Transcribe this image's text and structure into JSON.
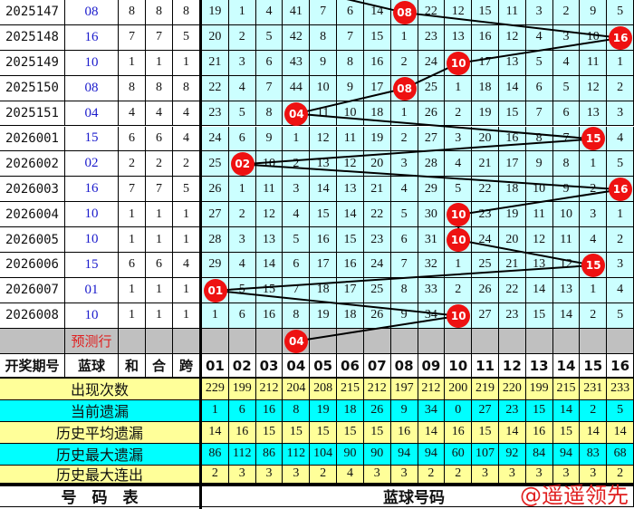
{
  "chart_data": {
    "type": "table",
    "title": "",
    "columns": [
      "开奖期号",
      "蓝球",
      "和",
      "合",
      "跨",
      "01",
      "02",
      "03",
      "04",
      "05",
      "06",
      "07",
      "08",
      "09",
      "10",
      "11",
      "12",
      "13",
      "14",
      "15",
      "16"
    ],
    "rows": [
      {
        "period": "2025147",
        "blue": "08",
        "he": "8",
        "hex": "8",
        "kua": "8",
        "miss": [
          19,
          1,
          4,
          41,
          7,
          6,
          14,
          "08",
          22,
          12,
          15,
          11,
          3,
          2,
          9,
          5
        ]
      },
      {
        "period": "2025148",
        "blue": "16",
        "he": "7",
        "hex": "7",
        "kua": "5",
        "miss": [
          20,
          2,
          5,
          42,
          8,
          7,
          15,
          1,
          23,
          13,
          16,
          12,
          4,
          3,
          10,
          "16"
        ]
      },
      {
        "period": "2025149",
        "blue": "10",
        "he": "1",
        "hex": "1",
        "kua": "1",
        "miss": [
          21,
          3,
          6,
          43,
          9,
          8,
          16,
          2,
          24,
          "10",
          17,
          13,
          5,
          4,
          11,
          1
        ]
      },
      {
        "period": "2025150",
        "blue": "08",
        "he": "8",
        "hex": "8",
        "kua": "8",
        "miss": [
          22,
          4,
          7,
          44,
          10,
          9,
          17,
          "08",
          25,
          1,
          18,
          14,
          6,
          5,
          12,
          2
        ]
      },
      {
        "period": "2025151",
        "blue": "04",
        "he": "4",
        "hex": "4",
        "kua": "4",
        "miss": [
          23,
          5,
          8,
          "04",
          11,
          10,
          18,
          1,
          26,
          2,
          19,
          15,
          7,
          6,
          13,
          3
        ]
      },
      {
        "period": "2026001",
        "blue": "15",
        "he": "6",
        "hex": "6",
        "kua": "4",
        "miss": [
          24,
          6,
          9,
          1,
          12,
          11,
          19,
          2,
          27,
          3,
          20,
          16,
          8,
          7,
          "15",
          4
        ]
      },
      {
        "period": "2026002",
        "blue": "02",
        "he": "2",
        "hex": "2",
        "kua": "2",
        "miss": [
          25,
          "02",
          10,
          2,
          13,
          12,
          20,
          3,
          28,
          4,
          21,
          17,
          9,
          8,
          1,
          5
        ]
      },
      {
        "period": "2026003",
        "blue": "16",
        "he": "7",
        "hex": "7",
        "kua": "5",
        "miss": [
          26,
          1,
          11,
          3,
          14,
          13,
          21,
          4,
          29,
          5,
          22,
          18,
          10,
          9,
          2,
          "16"
        ]
      },
      {
        "period": "2026004",
        "blue": "10",
        "he": "1",
        "hex": "1",
        "kua": "1",
        "miss": [
          27,
          2,
          12,
          4,
          15,
          14,
          22,
          5,
          30,
          "10",
          23,
          19,
          11,
          10,
          3,
          1
        ]
      },
      {
        "period": "2026005",
        "blue": "10",
        "he": "1",
        "hex": "1",
        "kua": "1",
        "miss": [
          28,
          3,
          13,
          5,
          16,
          15,
          23,
          6,
          31,
          "10",
          24,
          20,
          12,
          11,
          4,
          2
        ]
      },
      {
        "period": "2026006",
        "blue": "15",
        "he": "6",
        "hex": "6",
        "kua": "4",
        "miss": [
          29,
          4,
          14,
          6,
          17,
          16,
          24,
          7,
          32,
          1,
          25,
          21,
          13,
          12,
          "15",
          3
        ]
      },
      {
        "period": "2026007",
        "blue": "01",
        "he": "1",
        "hex": "1",
        "kua": "1",
        "miss": [
          "01",
          5,
          15,
          7,
          18,
          17,
          25,
          8,
          33,
          2,
          26,
          22,
          14,
          13,
          1,
          4
        ]
      },
      {
        "period": "2026008",
        "blue": "10",
        "he": "1",
        "hex": "1",
        "kua": "1",
        "miss": [
          1,
          6,
          16,
          8,
          19,
          18,
          26,
          9,
          34,
          "10",
          27,
          23,
          15,
          14,
          2,
          5
        ]
      }
    ],
    "prediction": {
      "label": "预测行",
      "ball": "04"
    },
    "stats": [
      {
        "label": "出现次数",
        "values": [
          229,
          199,
          212,
          204,
          208,
          215,
          212,
          197,
          212,
          200,
          219,
          220,
          199,
          215,
          231,
          233
        ]
      },
      {
        "label": "当前遗漏",
        "values": [
          1,
          6,
          16,
          8,
          19,
          18,
          26,
          9,
          34,
          0,
          27,
          23,
          15,
          14,
          2,
          5
        ]
      },
      {
        "label": "历史平均遗漏",
        "values": [
          14,
          16,
          15,
          15,
          15,
          15,
          15,
          16,
          14,
          16,
          15,
          14,
          16,
          15,
          14,
          14
        ]
      },
      {
        "label": "历史最大遗漏",
        "values": [
          86,
          112,
          86,
          112,
          104,
          90,
          90,
          94,
          94,
          60,
          107,
          92,
          84,
          94,
          83,
          68
        ]
      },
      {
        "label": "历史最大连出",
        "values": [
          2,
          3,
          3,
          3,
          2,
          4,
          3,
          3,
          2,
          2,
          3,
          3,
          3,
          3,
          3,
          2
        ]
      }
    ],
    "footer": {
      "left": "号　码　表",
      "right": "蓝球号码"
    },
    "colors": {
      "ball": "#ee1111",
      "cell": "#ccffff",
      "stat_yellow": "#ffff99",
      "stat_cyan": "#00ffff",
      "blue_text": "#1a1acc",
      "watermark": "#e02020"
    }
  },
  "watermark": "@遥遥领先"
}
